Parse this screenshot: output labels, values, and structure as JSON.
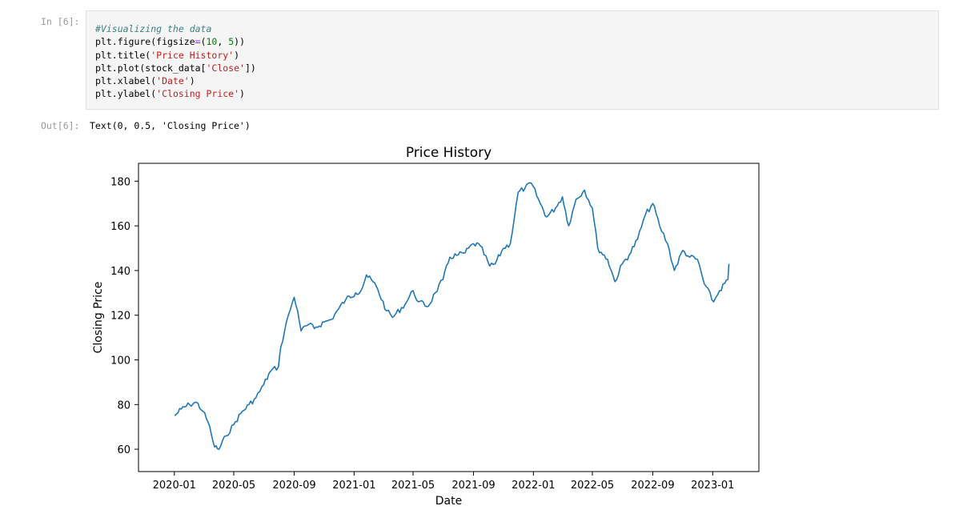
{
  "input_prompt": "In [6]:",
  "output_prompt": "Out[6]:",
  "code": {
    "comment": "#Visualizing the data",
    "figure_func": "plt.figure(figsize",
    "figure_eq": "=",
    "figure_args": "(10, 5)",
    "figure_w": "10",
    "figure_h": "5",
    "title_func": "plt.title(",
    "title_arg": "'Price History'",
    "plot_func": "plt.plot(stock_data[",
    "plot_arg": "'Close'",
    "plot_end": "])",
    "xlabel_func": "plt.xlabel(",
    "xlabel_arg": "'Date'",
    "ylabel_func": "plt.ylabel(",
    "ylabel_arg": "'Closing Price'",
    "close_paren": ")"
  },
  "output_text": "Text(0, 0.5, 'Closing Price')",
  "colors": {
    "line": "#1f77b4",
    "cell_bg": "#f5f5f5",
    "prompt": "#9a9a9a"
  },
  "chart_data": {
    "type": "line",
    "title": "Price History",
    "xlabel": "Date",
    "ylabel": "Closing Price",
    "x_tick_labels": [
      "2020-01",
      "2020-05",
      "2020-09",
      "2021-01",
      "2021-05",
      "2021-09",
      "2022-01",
      "2022-05",
      "2022-09",
      "2023-01"
    ],
    "y_tick_labels": [
      "60",
      "80",
      "100",
      "120",
      "140",
      "160",
      "180"
    ],
    "ylim": [
      50,
      188
    ],
    "xlim": [
      "2019-10-20",
      "2023-04-05"
    ],
    "grid": false,
    "series": [
      {
        "x": [
          "2020-01-02",
          "2020-01-15",
          "2020-02-01",
          "2020-02-15",
          "2020-02-28",
          "2020-03-10",
          "2020-03-16",
          "2020-03-23",
          "2020-04-01",
          "2020-04-15",
          "2020-05-01",
          "2020-05-15",
          "2020-06-01",
          "2020-06-15",
          "2020-07-01",
          "2020-07-15",
          "2020-07-31",
          "2020-08-05",
          "2020-08-20",
          "2020-09-01",
          "2020-09-08",
          "2020-09-15",
          "2020-10-01",
          "2020-10-12",
          "2020-11-01",
          "2020-11-15",
          "2020-12-01",
          "2020-12-15",
          "2021-01-04",
          "2021-01-15",
          "2021-01-26",
          "2021-02-15",
          "2021-03-08",
          "2021-03-20",
          "2021-04-15",
          "2021-05-01",
          "2021-05-12",
          "2021-06-01",
          "2021-06-15",
          "2021-07-01",
          "2021-07-15",
          "2021-08-01",
          "2021-08-15",
          "2021-09-01",
          "2021-09-15",
          "2021-10-04",
          "2021-10-15",
          "2021-11-01",
          "2021-11-15",
          "2021-12-01",
          "2021-12-15",
          "2021-12-28",
          "2022-01-15",
          "2022-01-28",
          "2022-02-15",
          "2022-03-01",
          "2022-03-14",
          "2022-03-29",
          "2022-04-15",
          "2022-05-01",
          "2022-05-12",
          "2022-06-01",
          "2022-06-16",
          "2022-07-01",
          "2022-07-15",
          "2022-08-01",
          "2022-08-17",
          "2022-09-01",
          "2022-09-15",
          "2022-10-01",
          "2022-10-15",
          "2022-11-01",
          "2022-11-15",
          "2022-12-01",
          "2022-12-15",
          "2023-01-03",
          "2023-01-15",
          "2023-02-01",
          "2023-02-03"
        ],
        "y": [
          75,
          78,
          80,
          81,
          77,
          72,
          67,
          61,
          60,
          66,
          71,
          76,
          80,
          83,
          89,
          95,
          97,
          106,
          120,
          128,
          122,
          113,
          116,
          114,
          117,
          118,
          123,
          127,
          130,
          131,
          138,
          133,
          122,
          119,
          125,
          131,
          126,
          124,
          130,
          136,
          146,
          147,
          148,
          152,
          151,
          142,
          143,
          150,
          152,
          175,
          177,
          179,
          170,
          164,
          168,
          173,
          160,
          172,
          176,
          168,
          150,
          145,
          135,
          143,
          147,
          154,
          165,
          170,
          160,
          152,
          140,
          149,
          146,
          145,
          134,
          126,
          131,
          136,
          143
        ]
      }
    ]
  }
}
